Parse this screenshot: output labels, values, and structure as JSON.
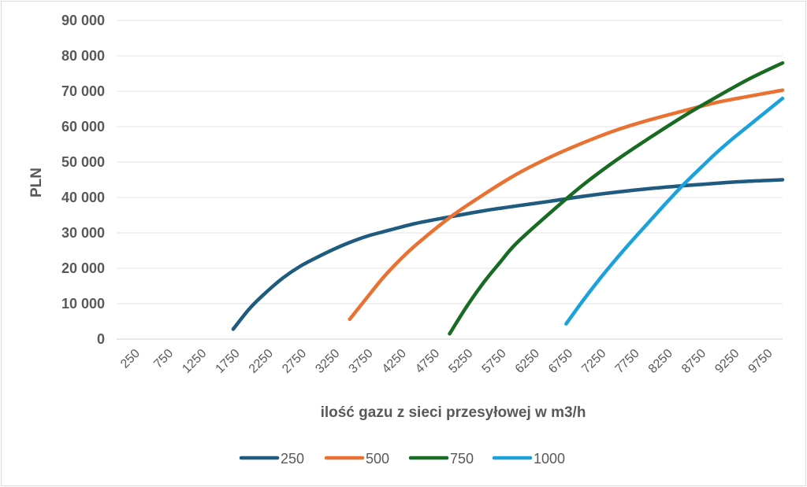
{
  "chart_data": {
    "type": "line",
    "title": "",
    "xlabel": "ilość gazu z sieci przesyłowej w m3/h",
    "ylabel": "PLN",
    "categories": [
      "250",
      "750",
      "1250",
      "1750",
      "2250",
      "2750",
      "3250",
      "3750",
      "4250",
      "4750",
      "5250",
      "5750",
      "6250",
      "6750",
      "7250",
      "7750",
      "8250",
      "8750",
      "9250",
      "9750"
    ],
    "x_tick_values": [
      250,
      750,
      1250,
      1750,
      2250,
      2750,
      3250,
      3750,
      4250,
      4750,
      5250,
      5750,
      6250,
      6750,
      7250,
      7750,
      8250,
      8750,
      9250,
      9750
    ],
    "xlim": [
      0,
      10000
    ],
    "y_ticks": [
      "0",
      "10 000",
      "20 000",
      "30 000",
      "40 000",
      "50 000",
      "60 000",
      "70 000",
      "80 000",
      "90 000"
    ],
    "ylim": [
      0,
      90000
    ],
    "grid": true,
    "legend_position": "bottom",
    "series": [
      {
        "name": "250",
        "color": "#1f5a7f",
        "x": [
          1750,
          2000,
          2250,
          2500,
          2750,
          3000,
          3250,
          3500,
          3750,
          4000,
          4500,
          5000,
          5500,
          6000,
          6500,
          7000,
          7500,
          8000,
          8500,
          9000,
          9500,
          10000
        ],
        "y": [
          2800,
          8700,
          13300,
          17300,
          20500,
          23000,
          25300,
          27300,
          29000,
          30300,
          32700,
          34500,
          36200,
          37600,
          38900,
          40300,
          41500,
          42500,
          43300,
          44000,
          44600,
          45000
        ]
      },
      {
        "name": "500",
        "color": "#e97132",
        "x": [
          3500,
          3750,
          4000,
          4250,
          4500,
          5000,
          5500,
          6000,
          6500,
          7000,
          7500,
          8000,
          8500,
          9000,
          9500,
          10000
        ],
        "y": [
          5600,
          11500,
          17300,
          22300,
          26700,
          34300,
          40700,
          46500,
          51300,
          55400,
          59000,
          61900,
          64400,
          66800,
          68600,
          70300
        ]
      },
      {
        "name": "750",
        "color": "#196b24",
        "x": [
          5000,
          5250,
          5500,
          5750,
          6000,
          6500,
          7000,
          7500,
          8000,
          8500,
          9000,
          9500,
          10000
        ],
        "y": [
          1500,
          9000,
          15700,
          21500,
          27000,
          35500,
          43500,
          50500,
          56800,
          62800,
          68300,
          73500,
          78000
        ]
      },
      {
        "name": "1000",
        "color": "#1ba1dc",
        "x": [
          6750,
          7000,
          7250,
          7500,
          7750,
          8000,
          8250,
          8500,
          8750,
          9000,
          9250,
          9500,
          9750,
          10000
        ],
        "y": [
          4300,
          10800,
          16900,
          22600,
          28000,
          33200,
          38400,
          43400,
          48000,
          52500,
          56600,
          60400,
          64200,
          68000
        ]
      }
    ]
  }
}
